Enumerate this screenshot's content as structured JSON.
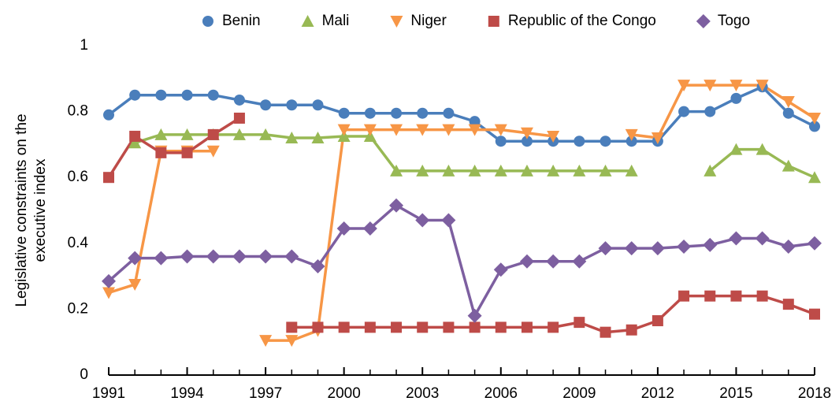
{
  "chart_data": {
    "type": "line",
    "ylabel": [
      "Legislative constraints on the",
      "executive index"
    ],
    "x": [
      1991,
      1992,
      1993,
      1994,
      1995,
      1996,
      1997,
      1998,
      1999,
      2000,
      2001,
      2002,
      2003,
      2004,
      2005,
      2006,
      2007,
      2008,
      2009,
      2010,
      2011,
      2012,
      2013,
      2014,
      2015,
      2016,
      2017,
      2018
    ],
    "xlim": [
      1991,
      2018
    ],
    "xticks": [
      1991,
      1994,
      1997,
      2000,
      2003,
      2006,
      2009,
      2012,
      2015,
      2018
    ],
    "ylim": [
      0,
      1
    ],
    "yticks": [
      0,
      0.2,
      0.4,
      0.6,
      0.8,
      1
    ],
    "grid": false,
    "legend": "top",
    "series": [
      {
        "name": "Benin",
        "color": "#4a7ebb",
        "marker": "circle",
        "values": [
          0.79,
          0.85,
          0.85,
          0.85,
          0.85,
          0.835,
          0.82,
          0.82,
          0.82,
          0.795,
          0.795,
          0.795,
          0.795,
          0.795,
          0.77,
          0.71,
          0.71,
          0.71,
          0.71,
          0.71,
          0.71,
          0.71,
          0.8,
          0.8,
          0.84,
          0.875,
          0.795,
          0.755
        ]
      },
      {
        "name": "Mali",
        "color": "#98b954",
        "marker": "triangle-up",
        "values": [
          null,
          0.705,
          0.73,
          0.73,
          0.73,
          0.73,
          0.73,
          0.72,
          0.72,
          0.725,
          0.725,
          0.62,
          0.62,
          0.62,
          0.62,
          0.62,
          0.62,
          0.62,
          0.62,
          0.62,
          0.62,
          null,
          null,
          0.62,
          0.685,
          0.685,
          0.635,
          0.6
        ]
      },
      {
        "name": "Niger",
        "color": "#f79646",
        "marker": "triangle-down",
        "values": [
          0.25,
          0.275,
          0.68,
          0.68,
          0.68,
          null,
          0.105,
          0.105,
          0.135,
          0.745,
          0.745,
          0.745,
          0.745,
          0.745,
          0.745,
          0.745,
          0.735,
          0.725,
          null,
          null,
          0.73,
          0.72,
          0.88,
          0.88,
          0.88,
          0.88,
          0.83,
          0.78
        ]
      },
      {
        "name": "Republic of the Congo",
        "color": "#be4b48",
        "marker": "square",
        "values": [
          0.6,
          0.725,
          0.675,
          0.675,
          0.73,
          0.78,
          null,
          0.145,
          0.145,
          0.145,
          0.145,
          0.145,
          0.145,
          0.145,
          0.145,
          0.145,
          0.145,
          0.145,
          0.16,
          0.13,
          0.137,
          0.165,
          0.24,
          0.24,
          0.24,
          0.24,
          0.215,
          0.185
        ]
      },
      {
        "name": "Togo",
        "color": "#7d5fa0",
        "marker": "diamond",
        "values": [
          0.285,
          0.355,
          0.355,
          0.36,
          0.36,
          0.36,
          0.36,
          0.36,
          0.33,
          0.445,
          0.445,
          0.515,
          0.47,
          0.47,
          0.18,
          0.32,
          0.345,
          0.345,
          0.345,
          0.385,
          0.385,
          0.385,
          0.39,
          0.395,
          0.415,
          0.415,
          0.39,
          0.4
        ]
      }
    ]
  }
}
